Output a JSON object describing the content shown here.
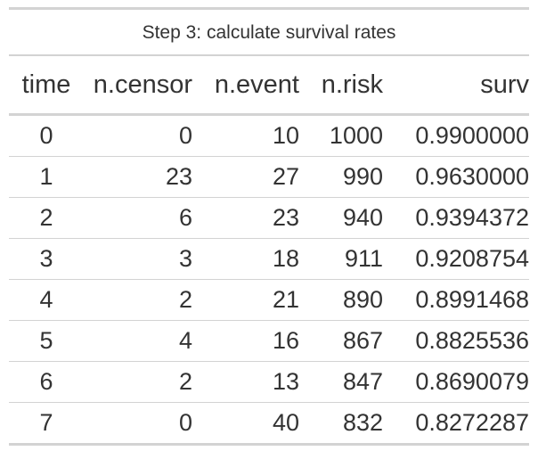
{
  "table": {
    "caption": "Step 3: calculate survival rates",
    "columns": [
      "time",
      "n.censor",
      "n.event",
      "n.risk",
      "surv"
    ],
    "rows": [
      [
        "0",
        "0",
        "10",
        "1000",
        "0.9900000"
      ],
      [
        "1",
        "23",
        "27",
        "990",
        "0.9630000"
      ],
      [
        "2",
        "6",
        "23",
        "940",
        "0.9394372"
      ],
      [
        "3",
        "3",
        "18",
        "911",
        "0.9208754"
      ],
      [
        "4",
        "2",
        "21",
        "890",
        "0.8991468"
      ],
      [
        "5",
        "4",
        "16",
        "867",
        "0.8825536"
      ],
      [
        "6",
        "2",
        "13",
        "847",
        "0.8690079"
      ],
      [
        "7",
        "0",
        "40",
        "832",
        "0.8272287"
      ]
    ]
  },
  "colors": {
    "text": "#333333",
    "rule": "#d3d3d3"
  }
}
